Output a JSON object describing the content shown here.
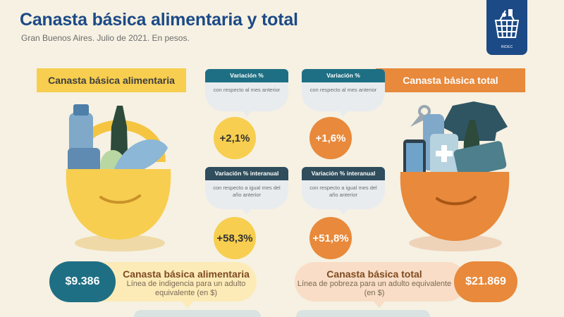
{
  "header": {
    "title": "Canasta básica alimentaria y total",
    "subtitle": "Gran Buenos Aires. Julio de 2021. En pesos."
  },
  "logo": {
    "icon": "basket-icon",
    "caption": "INDEC"
  },
  "left": {
    "heading": "Canasta básica alimentaria",
    "monthly": {
      "label": "Variación %",
      "description": "con respecto al mes anterior",
      "value": "+2,1%"
    },
    "yearly": {
      "label": "Variación % interanual",
      "description": "con respecto a igual mes del año anterior",
      "value": "+58,3%"
    },
    "amount": "$9.386",
    "bar_title": "Canasta básica alimentaria",
    "bar_subtitle": "Línea de indigencia para un adulto equivalente (en $)"
  },
  "right": {
    "heading": "Canasta básica total",
    "monthly": {
      "label": "Variación %",
      "description": "con respecto al mes anterior",
      "value": "+1,6%"
    },
    "yearly": {
      "label": "Variación % interanual",
      "description": "con respecto a igual mes del año anterior",
      "value": "+51,8%"
    },
    "amount": "$21.869",
    "bar_title": "Canasta básica total",
    "bar_subtitle": "Línea de pobreza para un adulto equivalente (en $)"
  },
  "colors": {
    "navy": "#1c4a86",
    "yellow": "#f7ce4f",
    "orange": "#e8893b",
    "teal": "#1e6f84",
    "background": "#f6f1e2"
  }
}
